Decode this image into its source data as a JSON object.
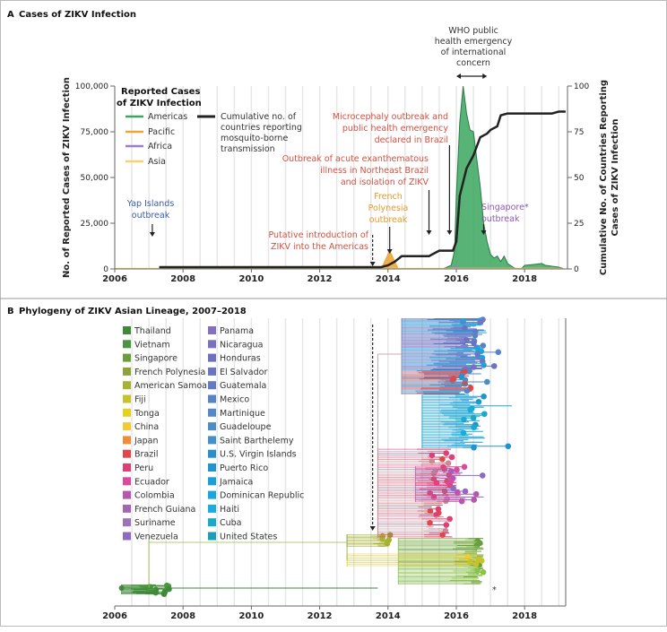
{
  "panel_a": {
    "letter": "A",
    "title": "Cases of ZIKV Infection"
  },
  "panel_b": {
    "letter": "B",
    "title": "Phylogeny of ZIKV Asian Lineage, 2007–2018"
  },
  "chart_data": [
    {
      "type": "area",
      "xlabel": "",
      "ylabel": "No. of Reported Cases of ZIKV Infection",
      "y2label": [
        "Cumulative No. of Countries Reporting",
        "Cases of ZIKV Infection"
      ],
      "xlim": [
        2006,
        2019.2
      ],
      "ylim": [
        0,
        100000
      ],
      "y2lim": [
        0,
        100
      ],
      "xticks": [
        "2006",
        "2008",
        "2010",
        "2012",
        "2014",
        "2016",
        "2018"
      ],
      "yticks": [
        "0",
        "25,000",
        "50,000",
        "75,000",
        "100,000"
      ],
      "y2ticks": [
        "0",
        "25",
        "50",
        "75",
        "100"
      ],
      "grid": "vertical",
      "legend": {
        "title": [
          "Reported Cases",
          "of ZIKV Infection"
        ],
        "placement": "top-left",
        "entries": [
          {
            "name": "Americas",
            "color": "#3aa65e"
          },
          {
            "name": "Pacific",
            "color": "#eea53a"
          },
          {
            "name": "Africa",
            "color": "#a07cc5"
          },
          {
            "name": "Asia",
            "color": "#f3d36b"
          }
        ],
        "line_entry": {
          "name": [
            "Cumulative no. of",
            "countries reporting",
            "mosquito-borne",
            "transmission"
          ],
          "color": "#222222"
        }
      },
      "series": [
        {
          "name": "Americas",
          "color": "#3aa65e",
          "x": [
            2015.6,
            2015.85,
            2015.95,
            2016.0,
            2016.1,
            2016.2,
            2016.3,
            2016.4,
            2016.5,
            2016.6,
            2016.7,
            2016.8,
            2016.9,
            2017.0,
            2017.1,
            2017.2,
            2017.3,
            2017.4,
            2017.5,
            2017.7,
            2017.9,
            2018.0,
            2018.3,
            2018.5,
            2018.6,
            2018.8,
            2019.0,
            2019.1
          ],
          "y": [
            0,
            2000,
            10000,
            40000,
            80000,
            100000,
            85000,
            76000,
            75000,
            60000,
            45000,
            25000,
            15000,
            8000,
            6000,
            7000,
            4000,
            7000,
            3000,
            500,
            0,
            2000,
            2500,
            3000,
            2000,
            1500,
            1000,
            500
          ]
        },
        {
          "name": "Pacific",
          "color": "#eea53a",
          "x": [
            2013.8,
            2013.95,
            2014.05,
            2014.15,
            2014.3
          ],
          "y": [
            0,
            6000,
            10000,
            6000,
            0
          ]
        },
        {
          "name": "Africa",
          "color": "#a07cc5",
          "x": [
            2015.85,
            2015.95,
            2016.05,
            2016.15
          ],
          "y": [
            0,
            1500,
            1000,
            0
          ]
        },
        {
          "name": "Asia",
          "color": "#f3d36b",
          "x": [
            2006,
            2019.1
          ],
          "y": [
            0,
            0
          ]
        },
        {
          "name": "Cumulative no. of countries reporting mosquito-borne transmission",
          "axis": "right",
          "color": "#222222",
          "x": [
            2007.3,
            2013.8,
            2014.0,
            2014.2,
            2014.4,
            2015.2,
            2015.4,
            2015.5,
            2015.9,
            2016.0,
            2016.1,
            2016.3,
            2016.5,
            2016.7,
            2016.9,
            2017.0,
            2017.2,
            2017.3,
            2017.5,
            2018.8,
            2019.0,
            2019.2
          ],
          "y": [
            1,
            1,
            2,
            4,
            7,
            7,
            9,
            10,
            10,
            15,
            40,
            55,
            62,
            72,
            74,
            76,
            78,
            84,
            85,
            85,
            86,
            86
          ]
        }
      ],
      "annotations": {
        "yap": [
          "Yap Islands",
          "outbreak"
        ],
        "putative": [
          "Putative introduction of",
          "ZIKV into the Americas"
        ],
        "french_polynesia": [
          "French",
          "Polynesia",
          "outbreak"
        ],
        "acute": [
          "Outbreak of acute exanthematous",
          "illness in Northeast Brazil",
          "and isolation of ZIKV"
        ],
        "microcephaly": [
          "Microcephaly outbreak and",
          "public health emergency",
          "declared in Brazil"
        ],
        "who": [
          "WHO public",
          "health emergency",
          "of international",
          "concern"
        ],
        "singapore": [
          "Singapore*",
          "outbreak"
        ]
      }
    },
    {
      "type": "tree",
      "xlim": [
        2006,
        2019.2
      ],
      "xticks": [
        "2006",
        "2008",
        "2010",
        "2012",
        "2014",
        "2016",
        "2018"
      ],
      "grid": "vertical",
      "legend": [
        {
          "name": "Thailand",
          "color": "#3f8a3a"
        },
        {
          "name": "Vietnam",
          "color": "#4c9540"
        },
        {
          "name": "Singapore",
          "color": "#6a9e3c"
        },
        {
          "name": "French Polynesia",
          "color": "#8ea23a"
        },
        {
          "name": "American Samoa",
          "color": "#a8b232"
        },
        {
          "name": "Fiji",
          "color": "#c7c22a"
        },
        {
          "name": "Tonga",
          "color": "#e6d21e"
        },
        {
          "name": "China",
          "color": "#f3c93a"
        },
        {
          "name": "Japan",
          "color": "#ef8d3a"
        },
        {
          "name": "Brazil",
          "color": "#e0474c"
        },
        {
          "name": "Peru",
          "color": "#e03e74"
        },
        {
          "name": "Ecuador",
          "color": "#d94aa0"
        },
        {
          "name": "Colombia",
          "color": "#b558ad"
        },
        {
          "name": "French Guiana",
          "color": "#a565b5"
        },
        {
          "name": "Suriname",
          "color": "#9d72b8"
        },
        {
          "name": "Venezuela",
          "color": "#8e6bc0"
        },
        {
          "name": "Panama",
          "color": "#8370be"
        },
        {
          "name": "Nicaragua",
          "color": "#7a6fc0"
        },
        {
          "name": "Honduras",
          "color": "#6f6fbf"
        },
        {
          "name": "El Salvador",
          "color": "#6a74c0"
        },
        {
          "name": "Guatemala",
          "color": "#637bc4"
        },
        {
          "name": "Mexico",
          "color": "#5a82c6"
        },
        {
          "name": "Martinique",
          "color": "#5488c8"
        },
        {
          "name": "Guadeloupe",
          "color": "#4c8dc8"
        },
        {
          "name": "Saint Barthelemy",
          "color": "#4292c9"
        },
        {
          "name": "U.S. Virgin Islands",
          "color": "#2a8ec8"
        },
        {
          "name": "Puerto Rico",
          "color": "#1e95d0"
        },
        {
          "name": "Jamaica",
          "color": "#1a9fd6"
        },
        {
          "name": "Dominican Republic",
          "color": "#1aa6dc"
        },
        {
          "name": "Haiti",
          "color": "#19acde"
        },
        {
          "name": "Cuba",
          "color": "#1aa9c8"
        },
        {
          "name": "United States",
          "color": "#1a9fb8"
        }
      ],
      "marker": "*"
    }
  ]
}
